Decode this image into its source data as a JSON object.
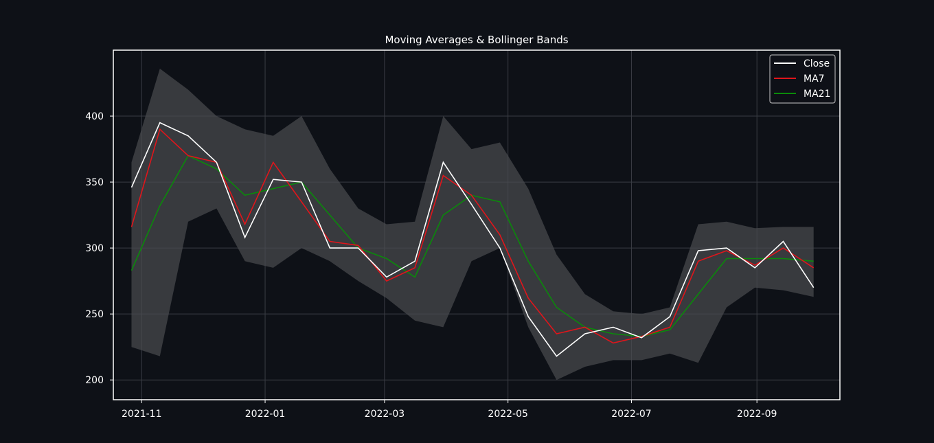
{
  "chart_data": {
    "type": "line",
    "title": "Moving Averages & Bollinger Bands",
    "xlabel": "",
    "ylabel": "",
    "xlim": [
      "2021-10-18",
      "2022-10-12"
    ],
    "ylim": [
      185,
      450
    ],
    "x_ticks": [
      "2021-11",
      "2022-01",
      "2022-03",
      "2022-05",
      "2022-07",
      "2022-09"
    ],
    "y_ticks": [
      200,
      250,
      300,
      350,
      400
    ],
    "grid": true,
    "legend_position": "top-right",
    "colors": {
      "background": "#0e1117",
      "axes_border": "#ffffff",
      "grid": "#3a3d44",
      "band_fill": "#4a4b50",
      "close": "#ffffff",
      "ma7": "#e0151b",
      "ma21": "#0a8a0a"
    },
    "dates": [
      "2021-10-27",
      "2021-11-10",
      "2021-11-24",
      "2021-12-08",
      "2021-12-22",
      "2022-01-05",
      "2022-01-19",
      "2022-02-02",
      "2022-02-16",
      "2022-03-02",
      "2022-03-16",
      "2022-03-30",
      "2022-04-13",
      "2022-04-27",
      "2022-05-11",
      "2022-05-25",
      "2022-06-08",
      "2022-06-22",
      "2022-07-06",
      "2022-07-20",
      "2022-08-03",
      "2022-08-17",
      "2022-08-31",
      "2022-09-14",
      "2022-09-29"
    ],
    "series": [
      {
        "name": "Close",
        "values": [
          346,
          395,
          385,
          365,
          308,
          352,
          350,
          300,
          300,
          278,
          290,
          365,
          333,
          300,
          248,
          218,
          235,
          240,
          232,
          248,
          298,
          300,
          285,
          305,
          270
        ]
      },
      {
        "name": "MA7",
        "values": [
          316,
          390,
          370,
          365,
          318,
          365,
          335,
          305,
          302,
          275,
          285,
          355,
          340,
          310,
          262,
          235,
          240,
          228,
          233,
          240,
          290,
          298,
          287,
          300,
          285
        ]
      },
      {
        "name": "MA21",
        "values": [
          283,
          332,
          370,
          360,
          340,
          345,
          350,
          325,
          300,
          292,
          278,
          325,
          340,
          335,
          290,
          255,
          240,
          235,
          233,
          238,
          265,
          292,
          292,
          292,
          290
        ]
      }
    ],
    "bands": {
      "upper": [
        365,
        436,
        420,
        400,
        390,
        385,
        400,
        360,
        330,
        318,
        320,
        400,
        375,
        380,
        345,
        295,
        265,
        252,
        250,
        255,
        318,
        320,
        315,
        316,
        316
      ],
      "lower": [
        225,
        218,
        320,
        330,
        290,
        285,
        300,
        290,
        275,
        262,
        245,
        240,
        290,
        300,
        240,
        200,
        210,
        215,
        215,
        220,
        213,
        255,
        270,
        268,
        263
      ]
    },
    "legend": [
      "Close",
      "MA7",
      "MA21"
    ]
  }
}
